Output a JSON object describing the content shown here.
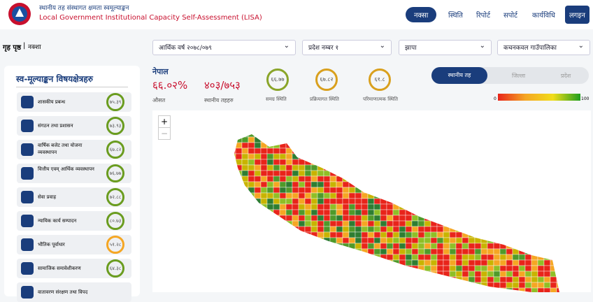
{
  "header": {
    "title_np": "स्थानीय तह संस्थागत क्षमता स्वमूल्याङ्कन",
    "title_en": "Local Government Institutional Capacity Self-Assessment (LISA)"
  },
  "nav": [
    "नक्सा",
    "स्थिति",
    "रिपोर्ट",
    "सपोर्ट",
    "कार्यविधि",
    "लगइन"
  ],
  "breadcrumb": {
    "home": "गृह पृष्ठ",
    "separator": "|",
    "current": "नक्शा"
  },
  "filters": [
    "आर्थिक वर्ष २०७८/०७९",
    "प्रदेश नम्बर १",
    "झापा",
    "कचनकवल गाउँपालिका"
  ],
  "sidebar": {
    "title": "स्व-मूल्याङ्कन विषयक्षेत्रहरु",
    "items": [
      {
        "label": "शासकीय प्रबन्ध",
        "score": "७५.३९"
      },
      {
        "label": "संगठन तथा प्रशासन",
        "score": "७३.९३"
      },
      {
        "label": "वार्षिक बजेट तथा योजना व्यवस्थापन",
        "score": "६७.८२"
      },
      {
        "label": "वित्तीय एवम् आर्थिक व्यवस्थापन",
        "score": "७६.७७"
      },
      {
        "label": "सेवा प्रवाह",
        "score": "७२.८८"
      },
      {
        "label": "न्यायिक कार्य सम्पादन",
        "score": "८०.७३"
      },
      {
        "label": "भौतिक पूर्वाधार",
        "score": "५१.२८"
      },
      {
        "label": "सामाजिक समावेशीकरण",
        "score": "६४.३८"
      },
      {
        "label": "वातावरण संरक्षण तथा विपद"
      }
    ]
  },
  "summary": {
    "region": "नेपाल",
    "average": "६६.०२%",
    "average_label": "औसत",
    "count": "४०३/७५३",
    "count_label": "स्थानीय तहहरु",
    "gauges": [
      {
        "value": "६६.७७",
        "label": "समग्र स्थिति"
      },
      {
        "value": "६७.८२",
        "label": "प्रक्रियागत स्थिति"
      },
      {
        "value": "६१.८",
        "label": "परिमाणात्मक स्थिति"
      }
    ]
  },
  "view_toggle": [
    "स्थानीय तह",
    "जिल्ला",
    "प्रदेश"
  ],
  "legend": {
    "min": "0",
    "max": "100"
  },
  "map": {
    "zoom_in": "+",
    "zoom_out": "−"
  }
}
